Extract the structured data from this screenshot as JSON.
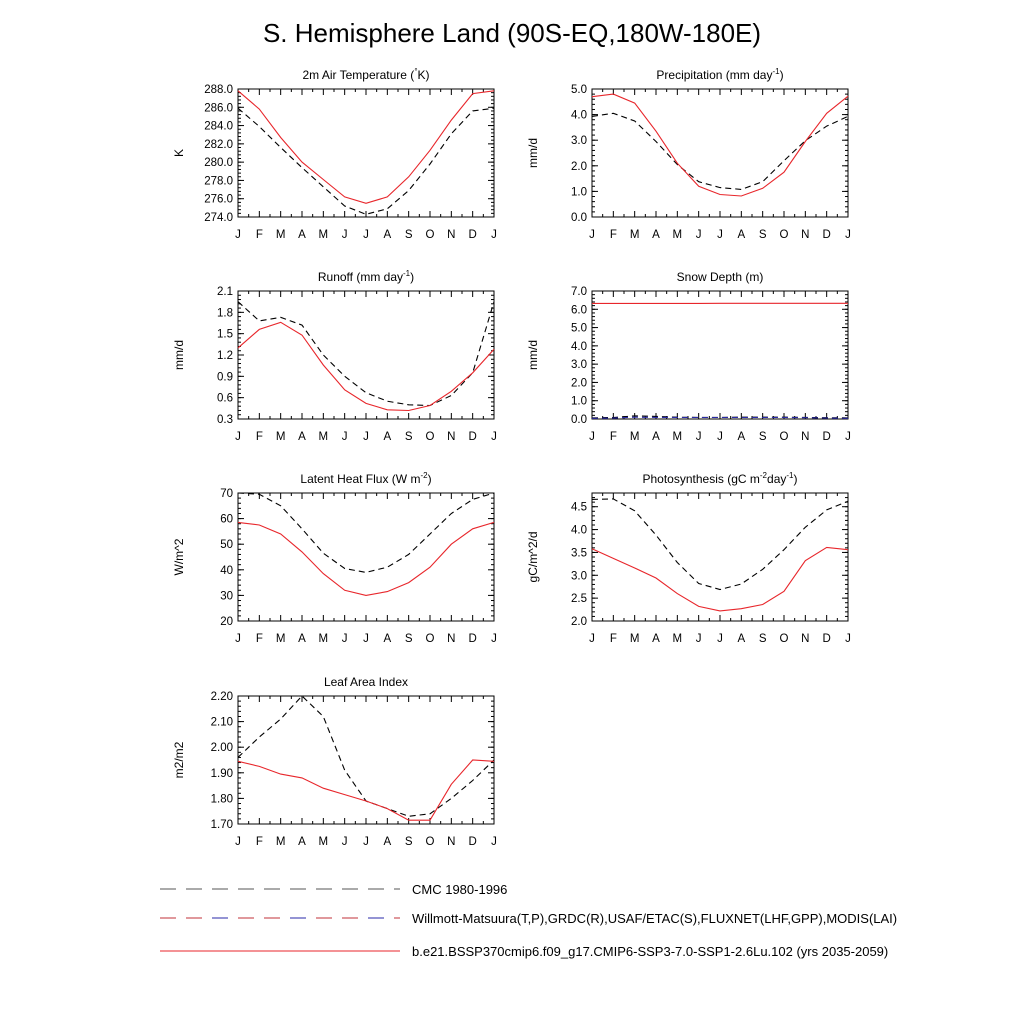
{
  "title": "S. Hemisphere Land (90S-EQ,180W-180E)",
  "months": [
    "J",
    "F",
    "M",
    "A",
    "M",
    "J",
    "J",
    "A",
    "S",
    "O",
    "N",
    "D",
    "J"
  ],
  "legend": [
    {
      "label": "CMC 1980-1996",
      "style": "dash-black"
    },
    {
      "label": "Willmott-Matsuura(T,P),GRDC(R),USAF/ETAC(S),FLUXNET(LHF,GPP),MODIS(LAI)",
      "style": "dash-red-blue"
    },
    {
      "label": "b.e21.BSSP370cmip6.f09_g17.CMIP6-SSP3-7.0-SSP1-2.6Lu.102 (yrs 2035-2059)",
      "style": "solid-red"
    }
  ],
  "colors": {
    "model": "#e8262b",
    "obs": "#000000",
    "obs_alt": "#2a2aa8"
  },
  "chart_data": [
    {
      "type": "line",
      "title": "2m Air Temperature (°K)",
      "ylabel": "K",
      "ylim": [
        274.0,
        288.0
      ],
      "yticks": [
        "274.0",
        "276.0",
        "278.0",
        "280.0",
        "282.0",
        "284.0",
        "286.0",
        "288.0"
      ],
      "series": [
        {
          "role": "obs",
          "values": [
            285.9,
            283.9,
            281.6,
            279.4,
            277.3,
            275.2,
            274.3,
            274.9,
            276.9,
            279.8,
            283.1,
            285.6,
            285.9
          ]
        },
        {
          "role": "model",
          "values": [
            287.8,
            285.8,
            282.7,
            280.0,
            278.1,
            276.2,
            275.5,
            276.2,
            278.4,
            281.3,
            284.6,
            287.5,
            287.8
          ]
        }
      ]
    },
    {
      "type": "line",
      "title": "Precipitation (mm day-1)",
      "ylabel": "mm/d",
      "ylim": [
        0.0,
        5.0
      ],
      "yticks": [
        "0.0",
        "1.0",
        "2.0",
        "3.0",
        "4.0",
        "5.0"
      ],
      "series": [
        {
          "role": "obs",
          "values": [
            3.93,
            4.05,
            3.75,
            2.95,
            2.05,
            1.38,
            1.15,
            1.08,
            1.38,
            2.2,
            2.98,
            3.55,
            3.93
          ]
        },
        {
          "role": "model",
          "values": [
            4.7,
            4.8,
            4.45,
            3.35,
            2.1,
            1.2,
            0.88,
            0.82,
            1.12,
            1.75,
            2.95,
            4.05,
            4.72
          ]
        }
      ]
    },
    {
      "type": "line",
      "title": "Runoff (mm day-1)",
      "ylabel": "mm/d",
      "ylim": [
        0.3,
        2.1
      ],
      "yticks": [
        "0.3",
        "0.6",
        "0.9",
        "1.2",
        "1.5",
        "1.8",
        "2.1"
      ],
      "series": [
        {
          "role": "obs",
          "values": [
            1.95,
            1.68,
            1.73,
            1.62,
            1.2,
            0.9,
            0.67,
            0.55,
            0.5,
            0.49,
            0.63,
            0.95,
            1.95
          ]
        },
        {
          "role": "model",
          "values": [
            1.3,
            1.56,
            1.66,
            1.48,
            1.06,
            0.71,
            0.52,
            0.43,
            0.42,
            0.49,
            0.69,
            0.95,
            1.28
          ]
        }
      ]
    },
    {
      "type": "line",
      "title": "Snow Depth (m)",
      "ylabel": "mm/d",
      "ylim": [
        0.0,
        7.0
      ],
      "yticks": [
        "0.0",
        "1.0",
        "2.0",
        "3.0",
        "4.0",
        "5.0",
        "6.0",
        "7.0"
      ],
      "series": [
        {
          "role": "obs",
          "values": [
            0.06,
            0.08,
            0.17,
            0.14,
            0.1,
            0.09,
            0.09,
            0.1,
            0.1,
            0.1,
            0.09,
            0.07,
            0.06
          ]
        },
        {
          "role": "obs_alt",
          "values": [
            0.04,
            0.05,
            0.1,
            0.09,
            0.08,
            0.08,
            0.08,
            0.08,
            0.08,
            0.08,
            0.07,
            0.05,
            0.04
          ]
        },
        {
          "role": "model",
          "values": [
            6.32,
            6.32,
            6.32,
            6.32,
            6.32,
            6.32,
            6.33,
            6.33,
            6.33,
            6.33,
            6.33,
            6.33,
            6.33
          ]
        }
      ]
    },
    {
      "type": "line",
      "title": "Latent Heat Flux (W m-2)",
      "ylabel": "W/m^2",
      "ylim": [
        20,
        70
      ],
      "yticks": [
        "20",
        "30",
        "40",
        "50",
        "60",
        "70"
      ],
      "series": [
        {
          "role": "obs",
          "values": [
            70,
            69.5,
            65,
            56,
            46.5,
            40.5,
            39,
            41,
            46,
            54,
            62,
            67.5,
            70
          ]
        },
        {
          "role": "model",
          "values": [
            58.5,
            57.5,
            54,
            47,
            38.5,
            32,
            30,
            31.5,
            35,
            41,
            50,
            56,
            58.5
          ]
        }
      ]
    },
    {
      "type": "line",
      "title": "Photosynthesis (gC m-2day-1)",
      "ylabel": "gC/m^2/d",
      "ylim": [
        2.0,
        4.8
      ],
      "yticks": [
        "2.0",
        "2.5",
        "3.0",
        "3.5",
        "4.0",
        "4.5"
      ],
      "series": [
        {
          "role": "obs",
          "values": [
            4.66,
            4.67,
            4.41,
            3.88,
            3.28,
            2.82,
            2.69,
            2.81,
            3.13,
            3.56,
            4.05,
            4.43,
            4.62
          ]
        },
        {
          "role": "model",
          "values": [
            3.58,
            3.37,
            3.16,
            2.94,
            2.6,
            2.32,
            2.22,
            2.27,
            2.36,
            2.65,
            3.32,
            3.61,
            3.56
          ]
        }
      ]
    },
    {
      "type": "line",
      "title": "Leaf Area Index",
      "ylabel": "m2/m2",
      "ylim": [
        1.7,
        2.2
      ],
      "yticks": [
        "1.70",
        "1.80",
        "1.90",
        "2.00",
        "2.10",
        "2.20"
      ],
      "series": [
        {
          "role": "obs",
          "values": [
            1.96,
            2.04,
            2.11,
            2.2,
            2.12,
            1.91,
            1.79,
            1.76,
            1.73,
            1.74,
            1.8,
            1.87,
            1.95
          ]
        },
        {
          "role": "model",
          "values": [
            1.945,
            1.925,
            1.895,
            1.88,
            1.84,
            1.815,
            1.79,
            1.76,
            1.715,
            1.715,
            1.855,
            1.95,
            1.945
          ]
        }
      ]
    }
  ]
}
